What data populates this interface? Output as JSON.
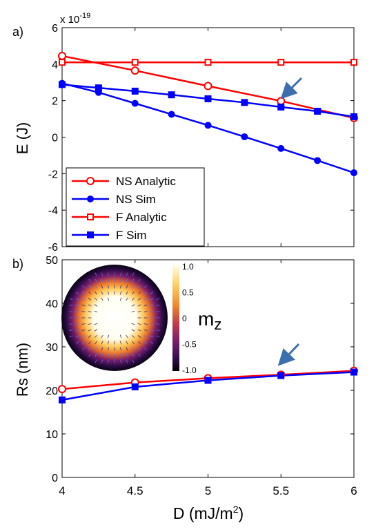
{
  "chart_data": [
    {
      "type": "line",
      "panel_label": "a)",
      "exponent_label": "x 10",
      "exponent_power": "-19",
      "ylabel": "E (J)",
      "xlabel": "",
      "xlim": [
        4,
        6
      ],
      "ylim": [
        -6,
        6
      ],
      "yticks": [
        "-6",
        "-4",
        "-2",
        "0",
        "2",
        "4",
        "6"
      ],
      "xticks": [
        "",
        "",
        "",
        "",
        ""
      ],
      "grid": false,
      "legend_position": "bottom-left",
      "series": [
        {
          "name": "NS Analytic",
          "color": "#ff0000",
          "marker": "circle-open",
          "x": [
            4,
            4.5,
            5,
            5.5,
            6
          ],
          "y": [
            4.45,
            3.65,
            2.8,
            1.98,
            1.05
          ]
        },
        {
          "name": "NS Sim",
          "color": "#0000ff",
          "marker": "circle-filled",
          "x": [
            4,
            4.25,
            4.5,
            4.75,
            5,
            5.25,
            5.5,
            5.75,
            6
          ],
          "y": [
            2.95,
            2.45,
            1.85,
            1.25,
            0.65,
            0.02,
            -0.62,
            -1.28,
            -1.95
          ]
        },
        {
          "name": "F Analytic",
          "color": "#ff0000",
          "marker": "square-open",
          "x": [
            4,
            4.5,
            5,
            5.5,
            6
          ],
          "y": [
            4.1,
            4.1,
            4.1,
            4.1,
            4.1
          ]
        },
        {
          "name": "F Sim",
          "color": "#0000ff",
          "marker": "square-filled",
          "x": [
            4,
            4.25,
            4.5,
            4.75,
            5,
            5.25,
            5.5,
            5.75,
            6
          ],
          "y": [
            2.88,
            2.7,
            2.52,
            2.32,
            2.1,
            1.9,
            1.65,
            1.42,
            1.12
          ]
        }
      ],
      "annotation": {
        "type": "arrow",
        "x": 5.5,
        "y": 2.0,
        "color": "#3d6fae"
      }
    },
    {
      "type": "line",
      "panel_label": "b)",
      "ylabel": "Rs (nm)",
      "xlabel": "D (mJ/m",
      "xlabel_sup": "2",
      "xlabel_end": ")",
      "xlim": [
        4,
        6
      ],
      "ylim": [
        0,
        50
      ],
      "yticks": [
        "0",
        "10",
        "20",
        "30",
        "40",
        "50"
      ],
      "xticks": [
        "4",
        "4.5",
        "5",
        "5.5",
        "6"
      ],
      "grid": false,
      "series": [
        {
          "color": "#ff0000",
          "marker": "circle-open",
          "x": [
            4,
            4.5,
            5,
            5.5,
            6
          ],
          "y": [
            20.3,
            21.8,
            22.8,
            23.6,
            24.5
          ]
        },
        {
          "color": "#0000ff",
          "marker": "square-filled",
          "x": [
            4,
            4.5,
            5,
            5.5,
            6
          ],
          "y": [
            17.8,
            20.8,
            22.3,
            23.4,
            24.2
          ]
        }
      ],
      "annotation": {
        "type": "arrow",
        "x": 5.5,
        "y": 24.0,
        "color": "#3d6fae"
      },
      "inset": {
        "type": "heatmap",
        "colorbar_ticks": [
          "1.0",
          "0.5",
          "0",
          "-0.5",
          "-1.0"
        ],
        "colorbar_label": "m",
        "colorbar_label_sub": "z",
        "colormap": [
          "#000004",
          "#420a68",
          "#932667",
          "#dd513a",
          "#fca50a",
          "#fcffa4",
          "#ffffff"
        ]
      }
    }
  ]
}
